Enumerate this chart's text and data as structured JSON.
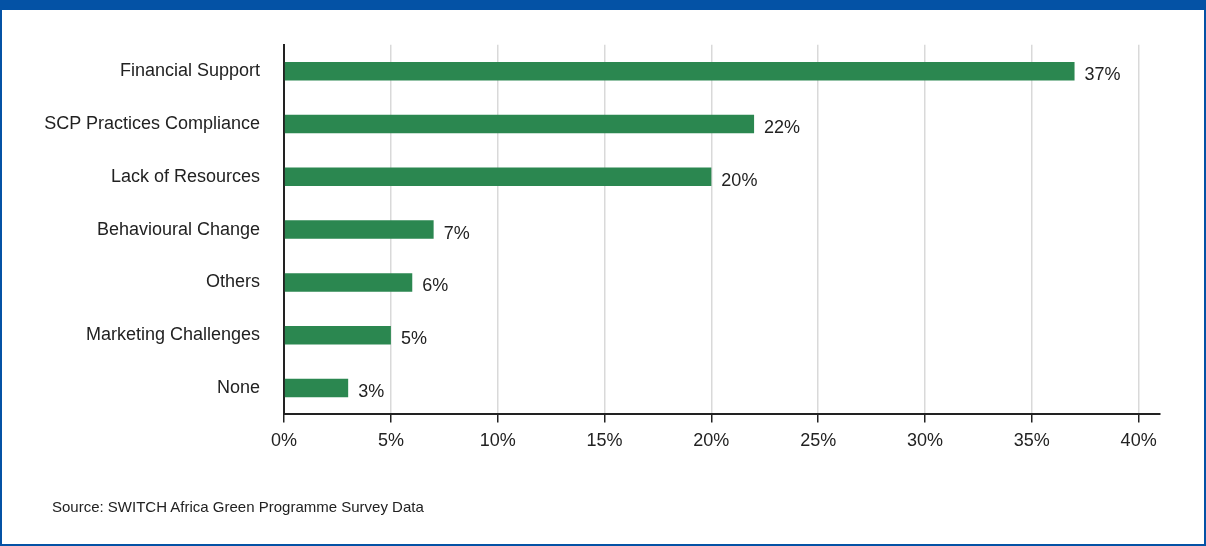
{
  "chart_data": {
    "type": "bar",
    "orientation": "horizontal",
    "categories": [
      "Financial Support",
      "SCP Practices Compliance",
      "Lack of Resources",
      "Behavioural Change",
      "Others",
      "Marketing Challenges",
      "None"
    ],
    "values": [
      37,
      22,
      20,
      7,
      6,
      5,
      3
    ],
    "value_labels": [
      "37%",
      "22%",
      "20%",
      "7%",
      "6%",
      "5%",
      "3%"
    ],
    "color": "#2b8750",
    "xlim": [
      0,
      41
    ],
    "xticks": [
      {
        "value": 0,
        "label": "0%"
      },
      {
        "value": 5,
        "label": "5%"
      },
      {
        "value": 10,
        "label": "10%"
      },
      {
        "value": 15,
        "label": "15%"
      },
      {
        "value": 20,
        "label": "20%"
      },
      {
        "value": 25,
        "label": "25%"
      },
      {
        "value": 30,
        "label": "30%"
      },
      {
        "value": 35,
        "label": "35%"
      },
      {
        "value": 40,
        "label": "40%"
      }
    ],
    "grid": "x",
    "legend": false,
    "annotations": [
      "Source: SWITCH Africa Green Programme Survey Data"
    ]
  }
}
